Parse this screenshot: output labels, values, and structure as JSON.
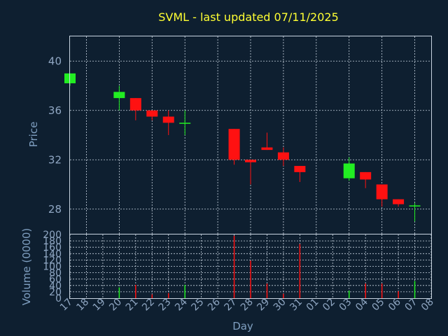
{
  "colors": {
    "background": "#0e1f30",
    "title": "#ffff33",
    "axis_text": "#8fa6c2",
    "frame": "#c8d4e0",
    "up": "#22ee22",
    "down": "#ff1111"
  },
  "chart_data": [
    {
      "type": "candlestick",
      "title": "SVML - last updated 07/11/2025",
      "ylabel": "Price",
      "ylim": [
        26,
        42
      ],
      "yticks": [
        28,
        32,
        36,
        40
      ],
      "grid": true,
      "xrange": [
        17,
        39
      ],
      "candles": [
        {
          "day": "17",
          "open": 38.2,
          "high": 39.0,
          "low": 38.0,
          "close": 39.0
        },
        {
          "day": "20",
          "open": 37.0,
          "high": 38.0,
          "low": 36.0,
          "close": 37.5
        },
        {
          "day": "21",
          "open": 37.0,
          "high": 37.0,
          "low": 35.2,
          "close": 36.0
        },
        {
          "day": "22",
          "open": 36.0,
          "high": 36.0,
          "low": 35.2,
          "close": 35.5
        },
        {
          "day": "23",
          "open": 35.5,
          "high": 36.0,
          "low": 34.0,
          "close": 35.0
        },
        {
          "day": "24",
          "open": 35.0,
          "high": 36.0,
          "low": 34.0,
          "close": 35.0
        },
        {
          "day": "27",
          "open": 34.5,
          "high": 34.5,
          "low": 31.6,
          "close": 32.0
        },
        {
          "day": "28",
          "open": 32.0,
          "high": 32.0,
          "low": 30.0,
          "close": 31.8
        },
        {
          "day": "29",
          "open": 33.0,
          "high": 34.2,
          "low": 32.8,
          "close": 32.8
        },
        {
          "day": "30",
          "open": 32.6,
          "high": 33.0,
          "low": 31.5,
          "close": 32.0
        },
        {
          "day": "31",
          "open": 31.5,
          "high": 31.5,
          "low": 30.2,
          "close": 31.0
        },
        {
          "day": "03",
          "open": 30.5,
          "high": 32.2,
          "low": 30.3,
          "close": 31.7
        },
        {
          "day": "04",
          "open": 31.0,
          "high": 31.0,
          "low": 29.7,
          "close": 30.4
        },
        {
          "day": "05",
          "open": 30.0,
          "high": 30.0,
          "low": 28.2,
          "close": 28.8
        },
        {
          "day": "06",
          "open": 28.8,
          "high": 28.8,
          "low": 28.2,
          "close": 28.4
        },
        {
          "day": "07",
          "open": 28.3,
          "high": 28.5,
          "low": 27.0,
          "close": 28.3
        }
      ]
    },
    {
      "type": "bar",
      "ylabel": "Volume (0000)",
      "xlabel": "Day",
      "ylim": [
        0,
        200
      ],
      "yticks": [
        0,
        20,
        40,
        60,
        80,
        100,
        120,
        140,
        160,
        180,
        200
      ],
      "grid": true,
      "categories": [
        "17",
        "18",
        "19",
        "20",
        "21",
        "22",
        "23",
        "24",
        "25",
        "26",
        "27",
        "28",
        "29",
        "30",
        "31",
        "01",
        "02",
        "03",
        "04",
        "05",
        "06",
        "07",
        "08"
      ],
      "bars": [
        {
          "day": "20",
          "value": 34,
          "dir": "up"
        },
        {
          "day": "21",
          "value": 42,
          "dir": "down"
        },
        {
          "day": "22",
          "value": 12,
          "dir": "down"
        },
        {
          "day": "23",
          "value": 16,
          "dir": "down"
        },
        {
          "day": "24",
          "value": 42,
          "dir": "up"
        },
        {
          "day": "27",
          "value": 196,
          "dir": "down"
        },
        {
          "day": "28",
          "value": 118,
          "dir": "down"
        },
        {
          "day": "29",
          "value": 46,
          "dir": "down"
        },
        {
          "day": "30",
          "value": 14,
          "dir": "down"
        },
        {
          "day": "31",
          "value": 170,
          "dir": "down"
        },
        {
          "day": "03",
          "value": 24,
          "dir": "up"
        },
        {
          "day": "04",
          "value": 46,
          "dir": "down"
        },
        {
          "day": "05",
          "value": 46,
          "dir": "down"
        },
        {
          "day": "06",
          "value": 22,
          "dir": "down"
        },
        {
          "day": "07",
          "value": 54,
          "dir": "up"
        }
      ]
    }
  ]
}
